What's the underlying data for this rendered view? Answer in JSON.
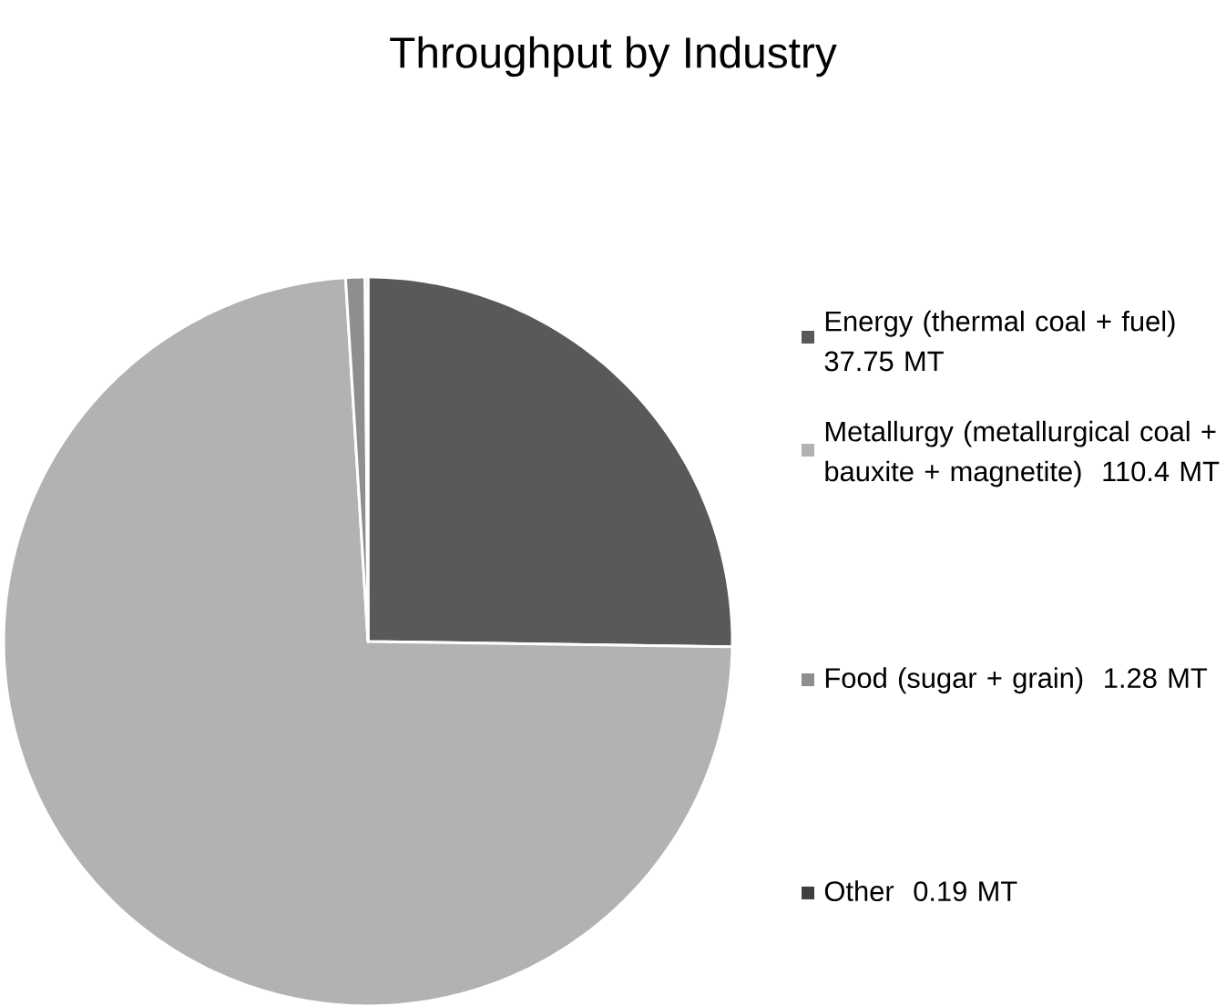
{
  "chart_data": {
    "type": "pie",
    "title": "Throughput by Industry",
    "categories": [
      "Energy (thermal coal + fuel)",
      "Metallurgy (metallurgical coal + bauxite + magnetite)",
      "Food (sugar + grain)",
      "Other"
    ],
    "values": [
      37.75,
      110.4,
      1.28,
      0.19
    ],
    "value_labels": [
      "37.75 MT",
      "110.4 MT",
      "1.28 MT",
      "0.19 MT"
    ],
    "colors": [
      "#595959",
      "#b2b2b2",
      "#8e8e8e",
      "#3f3f3f"
    ],
    "legend": "right"
  }
}
